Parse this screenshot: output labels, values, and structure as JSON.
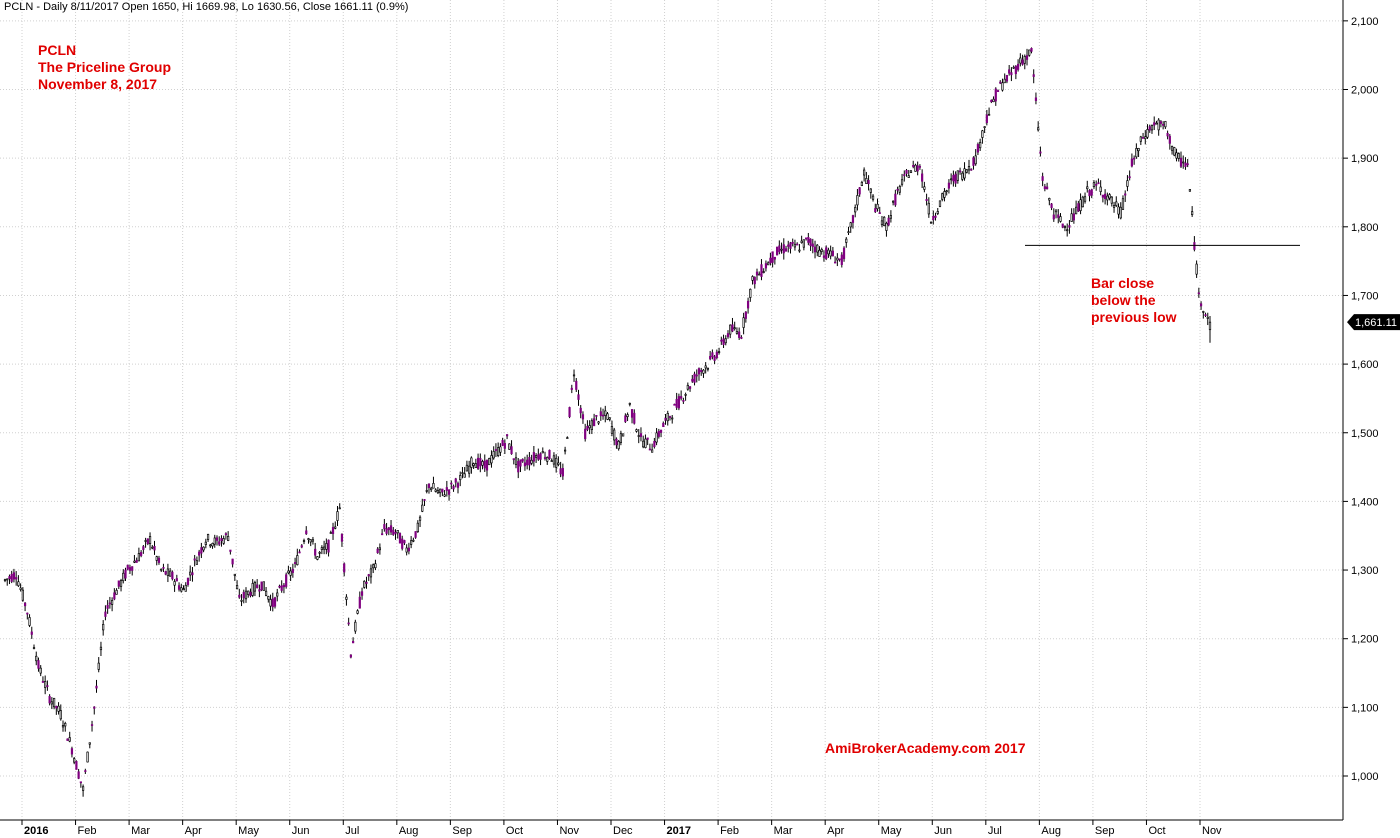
{
  "header": "PCLN - Daily 8/11/2017 Open 1650, Hi 1669.98, Lo 1630.56, Close 1661.11 (0.9%)",
  "annotations": {
    "title_lines": [
      "PCLN",
      "The Priceline Group",
      "November 8, 2017"
    ],
    "note_lines": [
      "Bar close",
      "below the",
      "previous low"
    ],
    "watermark": "AmiBrokerAcademy.com  2017"
  },
  "colors": {
    "up": "#ffffff",
    "down": "#800080",
    "wick": "#000000",
    "annotation": "#e00000",
    "grid": "#d0d0d0"
  },
  "chart_data": {
    "type": "candlestick",
    "ylim": [
      950,
      2110
    ],
    "y_ticks": [
      1000,
      1100,
      1200,
      1300,
      1400,
      1500,
      1600,
      1700,
      1800,
      1900,
      2000,
      2100
    ],
    "y_tick_labels": [
      "1,000",
      "1,100",
      "1,200",
      "1,300",
      "1,400",
      "1,500",
      "1,600",
      "1,700",
      "1,800",
      "1,900",
      "2,000",
      "2,100"
    ],
    "x_ticks": [
      {
        "label": "2016",
        "bold": true
      },
      {
        "label": "Feb"
      },
      {
        "label": "Mar"
      },
      {
        "label": "Apr"
      },
      {
        "label": "May"
      },
      {
        "label": "Jun"
      },
      {
        "label": "Jul"
      },
      {
        "label": "Aug"
      },
      {
        "label": "Sep"
      },
      {
        "label": "Oct"
      },
      {
        "label": "Nov"
      },
      {
        "label": "Dec"
      },
      {
        "label": "2017",
        "bold": true
      },
      {
        "label": "Feb"
      },
      {
        "label": "Mar"
      },
      {
        "label": "Apr"
      },
      {
        "label": "May"
      },
      {
        "label": "Jun"
      },
      {
        "label": "Jul"
      },
      {
        "label": "Aug"
      },
      {
        "label": "Sep"
      },
      {
        "label": "Oct"
      },
      {
        "label": "Nov"
      }
    ],
    "last_close": 1661.11,
    "last_close_label": "1,661.11",
    "previous_low_line": 1773,
    "weekly_closes": [
      1285,
      1295,
      1240,
      1160,
      1115,
      1090,
      1040,
      980,
      1100,
      1240,
      1270,
      1300,
      1320,
      1345,
      1300,
      1290,
      1270,
      1310,
      1345,
      1340,
      1350,
      1255,
      1270,
      1280,
      1250,
      1280,
      1305,
      1360,
      1320,
      1335,
      1390,
      1180,
      1270,
      1300,
      1360,
      1355,
      1330,
      1360,
      1425,
      1410,
      1420,
      1435,
      1460,
      1450,
      1470,
      1490,
      1450,
      1460,
      1470,
      1465,
      1440,
      1590,
      1500,
      1520,
      1525,
      1480,
      1540,
      1490,
      1480,
      1510,
      1535,
      1560,
      1585,
      1600,
      1620,
      1650,
      1645,
      1720,
      1740,
      1760,
      1770,
      1770,
      1780,
      1765,
      1760,
      1750,
      1810,
      1880,
      1830,
      1800,
      1850,
      1880,
      1890,
      1810,
      1840,
      1870,
      1880,
      1900,
      1960,
      2000,
      2020,
      2040,
      2055,
      1870,
      1820,
      1800,
      1820,
      1850,
      1860,
      1840,
      1820,
      1890,
      1930,
      1950,
      1945,
      1900,
      1890,
      1700,
      1661.11
    ]
  }
}
